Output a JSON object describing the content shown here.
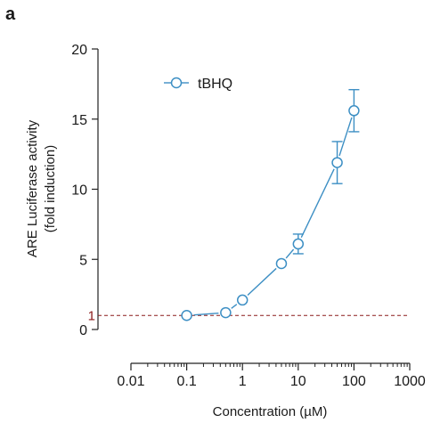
{
  "panel_label": "a",
  "chart_data": {
    "type": "line",
    "title": "",
    "xlabel": "Concentration (µM)",
    "ylabel_lines": [
      "ARE Luciferase activity",
      "(fold induction)"
    ],
    "x_scale": "log",
    "xlim": [
      0.01,
      1000
    ],
    "ylim": [
      0,
      20
    ],
    "x_ticks": [
      0.01,
      0.1,
      1,
      10,
      100,
      1000
    ],
    "x_tick_labels": [
      "0.01",
      "0.1",
      "1",
      "10",
      "100",
      "1000"
    ],
    "y_ticks": [
      0,
      5,
      10,
      15,
      20
    ],
    "y_tick_labels": [
      "0",
      "5",
      "10",
      "15",
      "20"
    ],
    "reference_line": {
      "y": 1,
      "label": "1",
      "color": "#8b1a1a"
    },
    "grid": false,
    "legend_position": "top-left",
    "series": [
      {
        "name": "tBHQ",
        "color": "#3d8fc4",
        "x": [
          0.1,
          0.5,
          1,
          5,
          10,
          50,
          100
        ],
        "y": [
          1.0,
          1.2,
          2.1,
          4.7,
          6.1,
          11.9,
          15.6
        ],
        "error": [
          0,
          0,
          0,
          0,
          0.7,
          1.5,
          1.5
        ]
      }
    ]
  }
}
